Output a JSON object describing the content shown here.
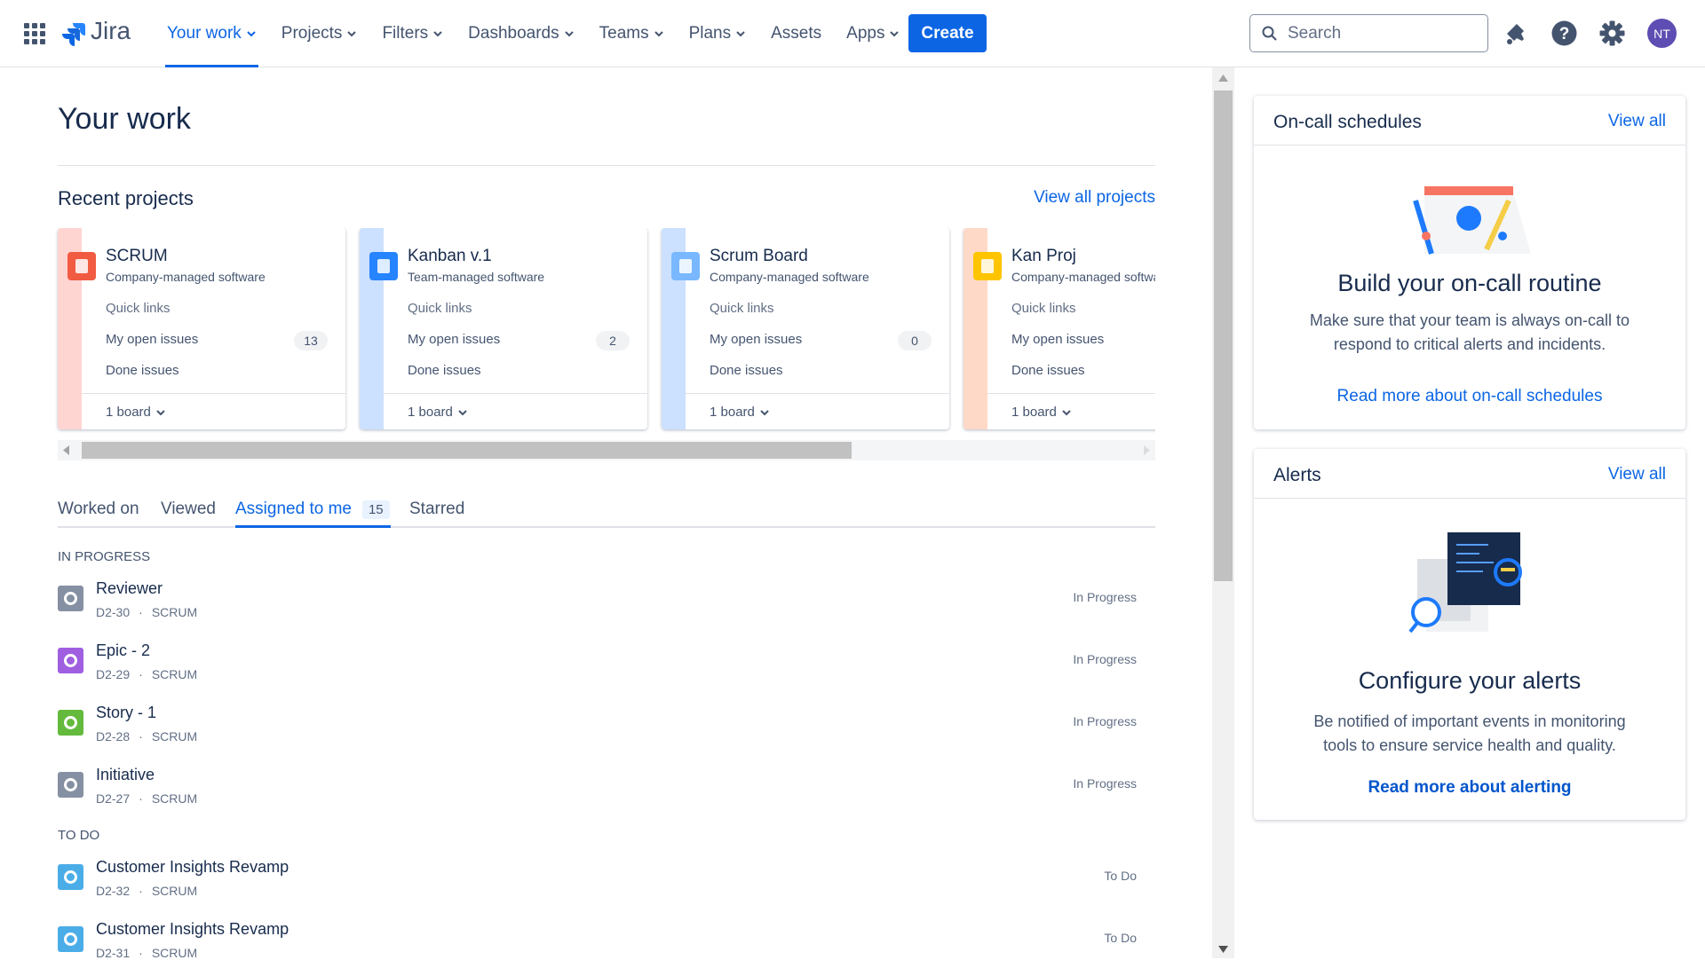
{
  "nav": {
    "logo": "Jira",
    "items": [
      "Your work",
      "Projects",
      "Filters",
      "Dashboards",
      "Teams",
      "Plans",
      "Assets",
      "Apps"
    ],
    "create": "Create",
    "search": "Search",
    "avatar": "NT"
  },
  "main": {
    "title": "Your work",
    "recent_projects": {
      "title": "Recent projects",
      "view_all": "View all projects",
      "projects": [
        {
          "name": "SCRUM",
          "type": "Company-managed software",
          "quick_links": "Quick links",
          "open_issues_label": "My open issues",
          "open_issues": 13,
          "done": "Done issues",
          "boards": "1 board",
          "color": "#ffd5d2",
          "icon_color": "#f15b42"
        },
        {
          "name": "Kanban v.1",
          "type": "Team-managed software",
          "quick_links": "Quick links",
          "open_issues_label": "My open issues",
          "open_issues": 2,
          "done": "Done issues",
          "boards": "1 board",
          "color": "#cce0ff",
          "icon_color": "#2684ff"
        },
        {
          "name": "Scrum Board",
          "type": "Company-managed software",
          "quick_links": "Quick links",
          "open_issues_label": "My open issues",
          "open_issues": 0,
          "done": "Done issues",
          "boards": "1 board",
          "color": "#cce0ff",
          "icon_color": "#79b8ff"
        },
        {
          "name": "Kan Proj",
          "type": "Company-managed software",
          "quick_links": "Quick links",
          "open_issues_label": "My open issues",
          "done": "Done issues",
          "boards": "1 board",
          "color": "#ffd9c7",
          "icon_color": "#ffc400"
        }
      ]
    },
    "tabs": [
      "Worked on",
      "Viewed",
      "Assigned to me",
      "Starred"
    ],
    "assigned_count": 15,
    "meta_separator": "·",
    "groups": [
      {
        "title": "IN PROGRESS",
        "items": [
          {
            "title": "Reviewer",
            "key": "D2-30",
            "project": "SCRUM",
            "status": "In Progress",
            "color": "#8590a2"
          },
          {
            "title": "Epic - 2",
            "key": "D2-29",
            "project": "SCRUM",
            "status": "In Progress",
            "color": "#9f5fe0"
          },
          {
            "title": "Story - 1",
            "key": "D2-28",
            "project": "SCRUM",
            "status": "In Progress",
            "color": "#63ba3c"
          },
          {
            "title": "Initiative",
            "key": "D2-27",
            "project": "SCRUM",
            "status": "In Progress",
            "color": "#8590a2"
          }
        ]
      },
      {
        "title": "TO DO",
        "items": [
          {
            "title": "Customer Insights Revamp",
            "key": "D2-32",
            "project": "SCRUM",
            "status": "To Do",
            "color": "#4bade8"
          },
          {
            "title": "Customer Insights Revamp",
            "key": "D2-31",
            "project": "SCRUM",
            "status": "To Do",
            "color": "#4bade8"
          }
        ]
      }
    ]
  },
  "sidebar": {
    "on_call": {
      "title": "On-call schedules",
      "view_all": "View all",
      "heading": "Build your on-call routine",
      "text": [
        "Make sure that your team is always on-call to",
        "respond to critical alerts and incidents."
      ],
      "link": "Read more about on-call schedules"
    },
    "alerts": {
      "title": "Alerts",
      "view_all": "View all",
      "heading": "Configure your alerts",
      "text": [
        "Be notified of important events in monitoring",
        "tools to ensure service health and quality."
      ],
      "link": "Read more about alerting"
    }
  }
}
